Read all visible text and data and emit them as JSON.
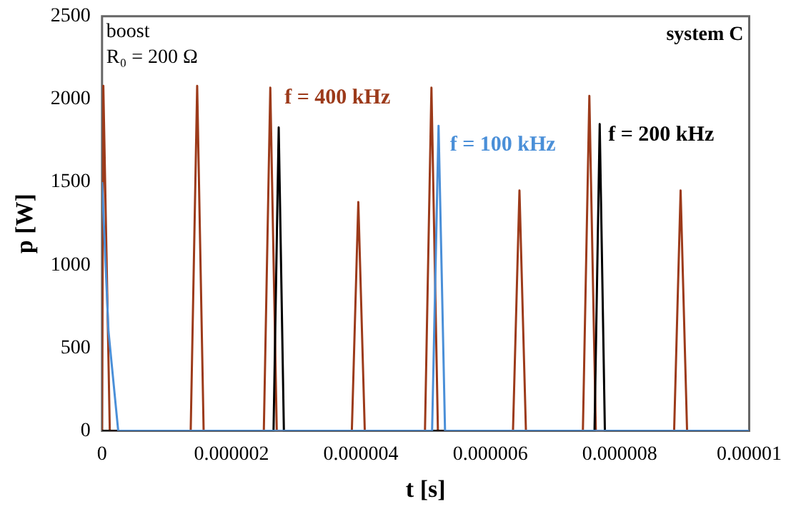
{
  "chart_data": {
    "type": "line",
    "xlabel": "t [s]",
    "ylabel": "p [W]",
    "annotations": [
      "boost",
      "R₀ = 200 Ω",
      "system C"
    ],
    "xlim": [
      0,
      1e-05
    ],
    "xticks": [
      0,
      {
        "value": 2e-06,
        "label": "0.000002"
      },
      {
        "value": 4e-06,
        "label": "0.000004"
      },
      {
        "value": 6e-06,
        "label": "0.000006"
      },
      {
        "value": 8e-06,
        "label": "0.000008"
      },
      {
        "value": 1e-05,
        "label": "0.00001"
      }
    ],
    "ylim": [
      0,
      2500
    ],
    "yticks": [
      0,
      500,
      1000,
      1500,
      2000,
      2500
    ],
    "grid": false,
    "legend": false,
    "marker": "none",
    "line_style": "solid",
    "series": [
      {
        "name": "f = 100 kHz",
        "color": "#4a8fd8",
        "x": [
          0,
          1e-07,
          2.5e-07,
          5.1e-06,
          5.2e-06,
          5.3e-06,
          1e-05
        ],
        "values": [
          1500,
          600,
          0,
          0,
          1840,
          0,
          0
        ]
      },
      {
        "name": "f = 200 kHz",
        "color": "#000000",
        "x": [
          0,
          2.65e-06,
          2.73e-06,
          2.81e-06,
          7.61e-06,
          7.69e-06,
          7.77e-06,
          1e-05
        ],
        "values": [
          0,
          0,
          1830,
          0,
          0,
          1850,
          0,
          0
        ]
      },
      {
        "name": "f = 400 kHz",
        "color": "#9c3a1a",
        "x": [
          0,
          2e-08,
          1.2e-07,
          1.37e-06,
          1.47e-06,
          1.57e-06,
          2.5e-06,
          2.6e-06,
          2.7e-06,
          3.86e-06,
          3.96e-06,
          4.06e-06,
          4.99e-06,
          5.09e-06,
          5.19e-06,
          6.35e-06,
          6.45e-06,
          6.55e-06,
          7.43e-06,
          7.53e-06,
          7.63e-06,
          8.84e-06,
          8.94e-06,
          9.04e-06,
          1e-05
        ],
        "values": [
          0,
          2080,
          0,
          0,
          2080,
          0,
          0,
          2070,
          0,
          0,
          1380,
          0,
          0,
          2070,
          0,
          0,
          1450,
          0,
          0,
          2020,
          0,
          0,
          1450,
          0,
          0
        ]
      }
    ]
  }
}
